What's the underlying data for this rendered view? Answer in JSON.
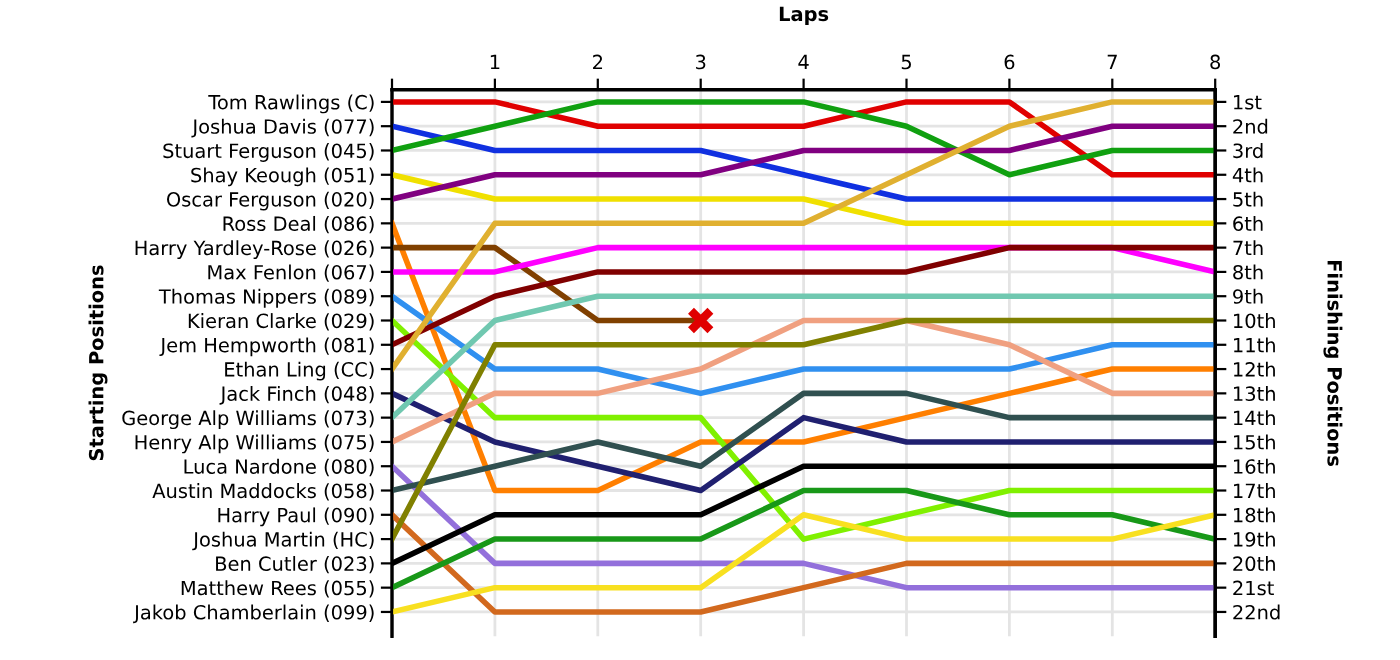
{
  "chart_data": {
    "type": "line",
    "xlabel": "Laps",
    "annotations": [
      "Starting Positions"
    ],
    "y2label": "Finishing Positions",
    "x": [
      0,
      1,
      2,
      3,
      4,
      5,
      6,
      7,
      8
    ],
    "xlim": [
      0,
      8
    ],
    "xticks": [
      {
        "value": 0,
        "label": null
      },
      1,
      2,
      3,
      4,
      5,
      6,
      7,
      8
    ],
    "y2lim": [
      23,
      0.5
    ],
    "y_categories": [
      "Tom Rawlings (C)",
      "Joshua Davis (077)",
      "Stuart Ferguson (045)",
      "Shay Keough (051)",
      "Oscar Ferguson (020)",
      "Ross Deal (086)",
      "Harry Yardley-Rose (026)",
      "Max Fenlon (067)",
      "Thomas Nippers (089)",
      "Kieran Clarke (029)",
      "Jem Hempworth (081)",
      "Ethan Ling (CC)",
      "Jack Finch (048)",
      "George Alp Williams (073)",
      "Henry Alp Williams (075)",
      "Luca Nardone (080)",
      "Austin Maddocks (058)",
      "Harry Paul (090)",
      "Joshua Martin (HC)",
      "Ben Cutler (023)",
      "Matthew Rees (055)",
      "Jakob Chamberlain (099)"
    ],
    "y2ticks": [
      {
        "value": 1,
        "label": "1st"
      },
      {
        "value": 2,
        "label": "2nd"
      },
      {
        "value": 3,
        "label": "3rd"
      },
      {
        "value": 4,
        "label": "4th"
      },
      {
        "value": 5,
        "label": "5th"
      },
      {
        "value": 6,
        "label": "6th"
      },
      {
        "value": 7,
        "label": "7th"
      },
      {
        "value": 8,
        "label": "8th"
      },
      {
        "value": 9,
        "label": "9th"
      },
      {
        "value": 10,
        "label": "10th"
      },
      {
        "value": 11,
        "label": "11th"
      },
      {
        "value": 12,
        "label": "12th"
      },
      {
        "value": 13,
        "label": "13th"
      },
      {
        "value": 14,
        "label": "14th"
      },
      {
        "value": 15,
        "label": "15th"
      },
      {
        "value": 16,
        "label": "16th"
      },
      {
        "value": 17,
        "label": "17th"
      },
      {
        "value": 18,
        "label": "18th"
      },
      {
        "value": 19,
        "label": "19th"
      },
      {
        "value": 20,
        "label": "20th"
      },
      {
        "value": 21,
        "label": "21st"
      },
      {
        "value": 22,
        "label": "22nd"
      }
    ],
    "grid": true,
    "marker": "none",
    "line_style": "solid",
    "legend": false,
    "series": [
      {
        "axis": "y2",
        "color": "#e00000",
        "values": [
          1,
          1,
          2,
          2,
          2,
          1,
          1,
          4,
          4
        ]
      },
      {
        "axis": "y2",
        "color": "#1030e0",
        "values": [
          2,
          3,
          3,
          3,
          4,
          5,
          5,
          5,
          5
        ]
      },
      {
        "axis": "y2",
        "color": "#10a010",
        "values": [
          3,
          2,
          1,
          1,
          1,
          2,
          4,
          3,
          3
        ]
      },
      {
        "axis": "y2",
        "color": "#f0e000",
        "values": [
          4,
          5,
          5,
          5,
          5,
          6,
          6,
          6,
          6
        ]
      },
      {
        "axis": "y2",
        "color": "#800080",
        "values": [
          5,
          4,
          4,
          4,
          3,
          3,
          3,
          2,
          2
        ]
      },
      {
        "axis": "y2",
        "color": "#ff7f00",
        "values": [
          6,
          17,
          17,
          15,
          15,
          14,
          13,
          12,
          12
        ]
      },
      {
        "axis": "y2",
        "color": "#804000",
        "values": [
          7,
          7,
          10,
          10,
          null,
          null,
          null,
          null,
          null
        ]
      },
      {
        "axis": "y2",
        "color": "#ff00ff",
        "values": [
          8,
          8,
          7,
          7,
          7,
          7,
          7,
          7,
          8
        ]
      },
      {
        "axis": "y2",
        "color": "#3090f0",
        "values": [
          9,
          12,
          12,
          13,
          12,
          12,
          12,
          11,
          11
        ]
      },
      {
        "axis": "y2",
        "color": "#80f000",
        "values": [
          10,
          14,
          14,
          14,
          19,
          18,
          17,
          17,
          17
        ]
      },
      {
        "axis": "y2",
        "color": "#800000",
        "values": [
          11,
          9,
          8,
          8,
          8,
          8,
          7,
          7,
          7
        ]
      },
      {
        "axis": "y2",
        "color": "#e0b030",
        "values": [
          12,
          6,
          6,
          6,
          6,
          4,
          2,
          1,
          1
        ]
      },
      {
        "axis": "y2",
        "color": "#202070",
        "values": [
          13,
          15,
          16,
          17,
          14,
          15,
          15,
          15,
          15
        ]
      },
      {
        "axis": "y2",
        "color": "#70c8b0",
        "values": [
          14,
          10,
          9,
          9,
          9,
          9,
          9,
          9,
          9
        ]
      },
      {
        "axis": "y2",
        "color": "#f0a080",
        "values": [
          15,
          13,
          13,
          12,
          10,
          10,
          11,
          13,
          13
        ]
      },
      {
        "axis": "y2",
        "color": "#9370db",
        "values": [
          16,
          20,
          20,
          20,
          20,
          21,
          21,
          21,
          21
        ]
      },
      {
        "axis": "y2",
        "color": "#305050",
        "values": [
          17,
          16,
          15,
          16,
          13,
          13,
          14,
          14,
          14
        ]
      },
      {
        "axis": "y2",
        "color": "#d2691e",
        "values": [
          18,
          22,
          22,
          22,
          21,
          20,
          20,
          20,
          20
        ]
      },
      {
        "axis": "y2",
        "color": "#808000",
        "values": [
          19,
          11,
          11,
          11,
          11,
          10,
          10,
          10,
          10
        ]
      },
      {
        "axis": "y2",
        "color": "#000000",
        "values": [
          20,
          18,
          18,
          18,
          16,
          16,
          16,
          16,
          16
        ]
      },
      {
        "axis": "y2",
        "color": "#189818",
        "values": [
          21,
          19,
          19,
          19,
          17,
          17,
          18,
          18,
          19
        ]
      },
      {
        "axis": "y2",
        "color": "#f8e020",
        "values": [
          22,
          21,
          21,
          21,
          18,
          19,
          19,
          19,
          18
        ]
      },
      {
        "axis": "y2",
        "type": "scatter",
        "marker": "cross",
        "color": "#e00000",
        "x": [
          3
        ],
        "values": [
          10
        ]
      }
    ]
  }
}
